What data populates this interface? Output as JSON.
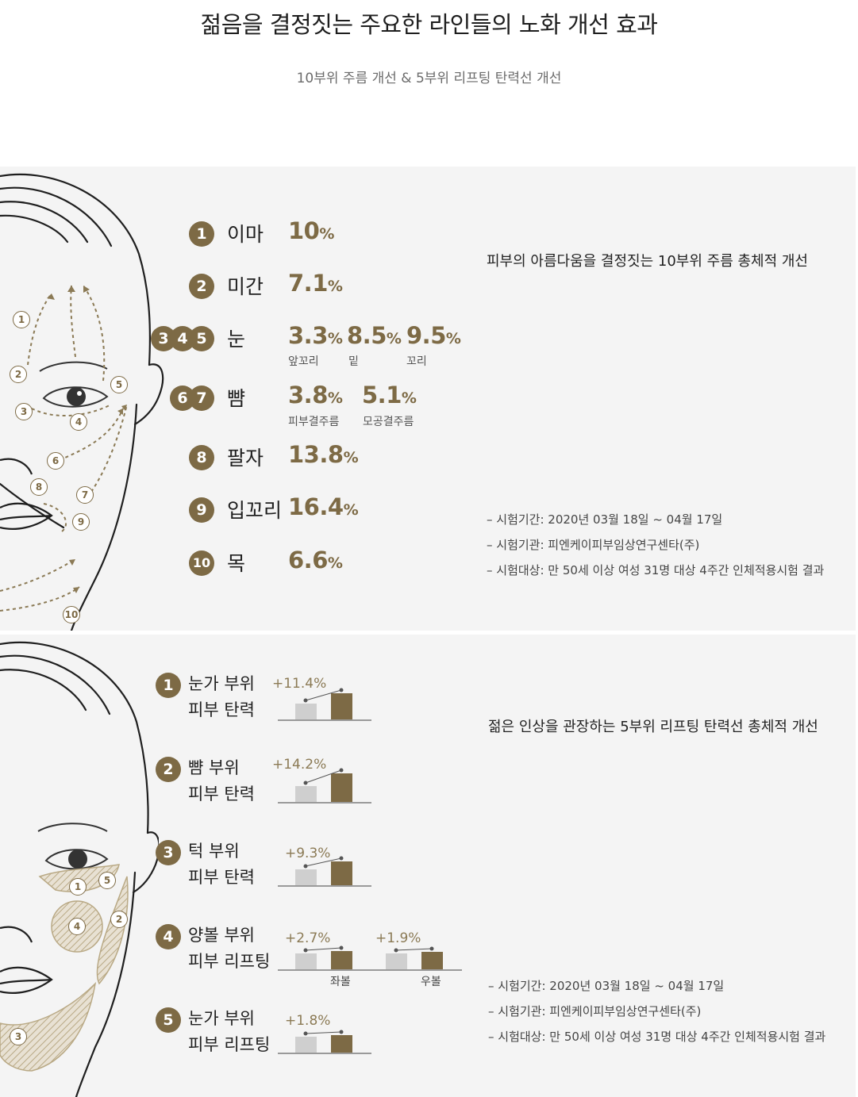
{
  "header": {
    "title": "젊음을 결정짓는 주요한 라인들의 노화 개선 효과",
    "subtitle": "10부위 주름 개선 & 5부위 리프팅 탄력선 개선"
  },
  "colors": {
    "accent": "#7d6a45",
    "panel_bg": "#f4f4f4",
    "bar_before": "#cfcfcf"
  },
  "wrinkle": {
    "rows": [
      {
        "badges": "1",
        "label": "이마",
        "values": [
          {
            "num": "10",
            "unit": "%"
          }
        ]
      },
      {
        "badges": "2",
        "label": "미간",
        "values": [
          {
            "num": "7.1",
            "unit": "%"
          }
        ]
      },
      {
        "badges": "345",
        "label": "눈",
        "values": [
          {
            "num": "3.3",
            "unit": "%",
            "caption": "앞꼬리"
          },
          {
            "num": "8.5",
            "unit": "%",
            "caption": "밑"
          },
          {
            "num": "9.5",
            "unit": "%",
            "caption": "꼬리"
          }
        ]
      },
      {
        "badges": "67",
        "label": "뺨",
        "values": [
          {
            "num": "3.8",
            "unit": "%",
            "caption": "피부결주름"
          },
          {
            "num": "5.1",
            "unit": "%",
            "caption": "모공결주름"
          }
        ]
      },
      {
        "badges": "8",
        "label": "팔자",
        "values": [
          {
            "num": "13.8",
            "unit": "%"
          }
        ]
      },
      {
        "badges": "9",
        "label": "입꼬리",
        "values": [
          {
            "num": "16.4",
            "unit": "%"
          }
        ]
      },
      {
        "badges": "10",
        "label": "목",
        "values": [
          {
            "num": "6.6",
            "unit": "%"
          }
        ]
      }
    ],
    "description": "피부의 아름다움을 결정짓는 10부위 주름 총체적 개선",
    "notes": [
      "– 시험기간: 2020년 03월 18일 ~ 04월 17일",
      "– 시험기관: 피엔케이피부임상연구센타(주)",
      "– 시험대상: 만 50세 이상 여성 31명 대상 4주간 인체적용시험 결과"
    ],
    "face_markers": [
      "1",
      "2",
      "3",
      "4",
      "5",
      "6",
      "7",
      "8",
      "9",
      "10"
    ]
  },
  "lifting": {
    "items": [
      {
        "badge": "1",
        "line1": "눈가 부위",
        "line2": "피부 탄력",
        "bars": [
          {
            "pct": "+11.4%",
            "ratio": 0.114
          }
        ]
      },
      {
        "badge": "2",
        "line1": "뺨 부위",
        "line2": "피부 탄력",
        "bars": [
          {
            "pct": "+14.2%",
            "ratio": 0.142
          }
        ]
      },
      {
        "badge": "3",
        "line1": "턱 부위",
        "line2": "피부 탄력",
        "bars": [
          {
            "pct": "+9.3%",
            "ratio": 0.093
          }
        ]
      },
      {
        "badge": "4",
        "line1": "양볼 부위",
        "line2": "피부 리프팅",
        "bars": [
          {
            "pct": "+2.7%",
            "ratio": 0.027,
            "caption": "좌볼"
          },
          {
            "pct": "+1.9%",
            "ratio": 0.019,
            "caption": "우볼"
          }
        ]
      },
      {
        "badge": "5",
        "line1": "눈가 부위",
        "line2": "피부 리프팅",
        "bars": [
          {
            "pct": "+1.8%",
            "ratio": 0.018
          }
        ]
      }
    ],
    "description": "젊은 인상을 관장하는 5부위 리프팅 탄력선 총체적 개선",
    "notes": [
      "– 시험기간: 2020년 03월 18일 ~ 04월 17일",
      "– 시험기관: 피엔케이피부임상연구센타(주)",
      "– 시험대상: 만 50세 이상 여성 31명 대상 4주간 인체적용시험 결과"
    ],
    "face_markers": [
      "1",
      "2",
      "3",
      "4",
      "5"
    ]
  }
}
